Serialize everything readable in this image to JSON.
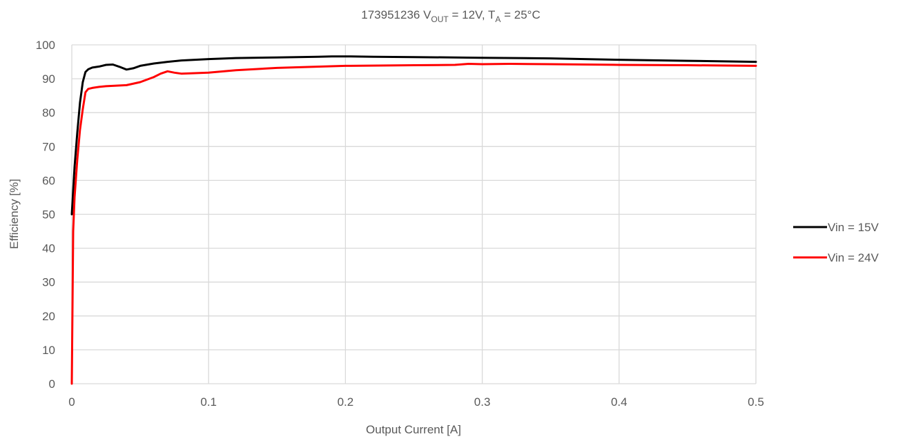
{
  "chart_data": {
    "type": "line",
    "title": {
      "prefix": "173951236 V",
      "sub1": "OUT",
      "mid": " = 12V, T",
      "sub2": "A",
      "suffix": " = 25°C"
    },
    "xlabel": "Output Current [A]",
    "ylabel": "Efficiency [%]",
    "xlim": [
      0,
      0.5
    ],
    "ylim": [
      0,
      100
    ],
    "xticks": [
      0,
      0.1,
      0.2,
      0.3,
      0.4,
      0.5
    ],
    "xtick_labels": [
      "0",
      "0.1",
      "0.2",
      "0.3",
      "0.4",
      "0.5"
    ],
    "yticks": [
      0,
      10,
      20,
      30,
      40,
      50,
      60,
      70,
      80,
      90,
      100
    ],
    "ytick_labels": [
      "0",
      "10",
      "20",
      "30",
      "40",
      "50",
      "60",
      "70",
      "80",
      "90",
      "100"
    ],
    "grid": true,
    "legend_position": "right",
    "series": [
      {
        "name": "Vin = 15V",
        "color": "#000000",
        "x": [
          0,
          0.001,
          0.002,
          0.004,
          0.006,
          0.008,
          0.01,
          0.012,
          0.015,
          0.02,
          0.025,
          0.03,
          0.035,
          0.04,
          0.045,
          0.05,
          0.06,
          0.07,
          0.08,
          0.1,
          0.12,
          0.15,
          0.18,
          0.19,
          0.2,
          0.22,
          0.25,
          0.3,
          0.35,
          0.4,
          0.45,
          0.5
        ],
        "y": [
          50,
          57,
          64,
          74,
          83,
          89,
          92,
          92.8,
          93.3,
          93.6,
          94.1,
          94.2,
          93.5,
          92.7,
          93.1,
          93.8,
          94.5,
          95,
          95.4,
          95.8,
          96.1,
          96.3,
          96.5,
          96.6,
          96.6,
          96.5,
          96.4,
          96.2,
          96,
          95.6,
          95.3,
          95
        ]
      },
      {
        "name": "Vin = 24V",
        "color": "#ff0000",
        "x": [
          0,
          0.001,
          0.002,
          0.004,
          0.006,
          0.008,
          0.01,
          0.012,
          0.015,
          0.02,
          0.025,
          0.03,
          0.04,
          0.05,
          0.06,
          0.065,
          0.07,
          0.075,
          0.08,
          0.1,
          0.12,
          0.15,
          0.2,
          0.25,
          0.28,
          0.29,
          0.3,
          0.32,
          0.35,
          0.4,
          0.45,
          0.5
        ],
        "y": [
          0,
          45,
          55,
          66,
          75,
          81,
          86,
          87,
          87.3,
          87.6,
          87.8,
          87.9,
          88.1,
          89,
          90.5,
          91.5,
          92.2,
          91.8,
          91.5,
          91.8,
          92.5,
          93.2,
          93.8,
          94,
          94.1,
          94.4,
          94.3,
          94.4,
          94.3,
          94.1,
          94,
          93.8
        ]
      }
    ]
  }
}
